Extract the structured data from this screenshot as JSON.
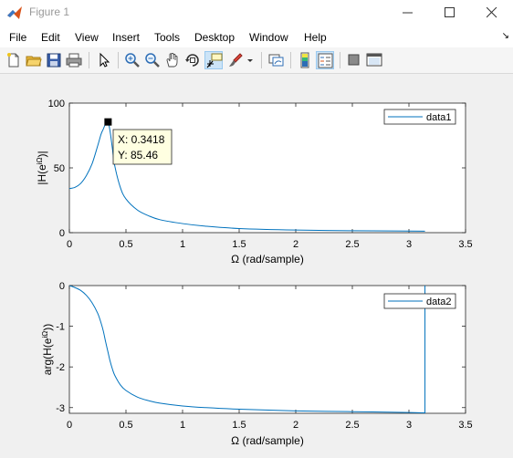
{
  "window": {
    "title": "Figure 1",
    "minimize_icon": "minimize-icon",
    "maximize_icon": "maximize-icon",
    "close_icon": "close-icon"
  },
  "menu": {
    "items": [
      "File",
      "Edit",
      "View",
      "Insert",
      "Tools",
      "Desktop",
      "Window",
      "Help"
    ]
  },
  "toolbar": {
    "icons": [
      "new-figure-icon",
      "open-file-icon",
      "save-icon",
      "print-icon",
      "select-arrow-icon",
      "zoom-in-icon",
      "zoom-out-icon",
      "pan-hand-icon",
      "rotate-3d-icon",
      "data-cursor-icon",
      "brush-icon",
      "brush-dropdown-icon",
      "link-plot-icon",
      "colorbar-icon",
      "legend-icon",
      "hide-plot-tools-icon",
      "show-plot-tools-icon"
    ]
  },
  "colors": {
    "series": "#0072bd",
    "axes_bg": "#ffffff",
    "figure_bg": "#f0f0f0"
  },
  "chart_data": [
    {
      "type": "line",
      "xlabel": "Ω (rad/sample)",
      "ylabel_main": "|H(e",
      "ylabel_sup": "iΩ",
      "ylabel_tail": ")|",
      "xlim": [
        0,
        3.5
      ],
      "ylim": [
        0,
        100
      ],
      "xticks": [
        "0",
        "0.5",
        "1",
        "1.5",
        "2",
        "2.5",
        "3",
        "3.5"
      ],
      "yticks": [
        "0",
        "50",
        "100"
      ],
      "legend": {
        "position": "top-right",
        "entries": [
          "data1"
        ]
      },
      "series": [
        {
          "name": "data1",
          "x": [
            0,
            0.05,
            0.1,
            0.15,
            0.2,
            0.25,
            0.28,
            0.3,
            0.32,
            0.3418,
            0.36,
            0.38,
            0.4,
            0.45,
            0.5,
            0.6,
            0.7,
            0.8,
            1.0,
            1.2,
            1.5,
            2.0,
            2.5,
            3.0,
            3.1416
          ],
          "y": [
            34,
            35,
            38,
            44,
            53,
            67,
            76,
            80,
            84,
            85.46,
            78,
            65,
            52,
            35,
            26,
            17.5,
            13,
            10,
            7,
            5,
            3.2,
            2,
            1.5,
            1.2,
            1.15
          ]
        }
      ],
      "datatip": {
        "x": 0.3418,
        "y": 85.46,
        "x_label": "X: 0.3418",
        "y_label": "Y: 85.46"
      }
    },
    {
      "type": "line",
      "xlabel": "Ω (rad/sample)",
      "ylabel_main": "arg(H(e",
      "ylabel_sup": "iΩ",
      "ylabel_tail": "))",
      "xlim": [
        0,
        3.5
      ],
      "ylim": [
        -3.14,
        0
      ],
      "xticks": [
        "0",
        "0.5",
        "1",
        "1.5",
        "2",
        "2.5",
        "3",
        "3.5"
      ],
      "yticks": [
        "0",
        "-1",
        "-2",
        "-3"
      ],
      "legend": {
        "position": "top-right",
        "entries": [
          "data2"
        ]
      },
      "series": [
        {
          "name": "data2",
          "x": [
            0,
            0.05,
            0.1,
            0.15,
            0.2,
            0.25,
            0.28,
            0.3,
            0.32,
            0.34,
            0.36,
            0.38,
            0.4,
            0.45,
            0.5,
            0.6,
            0.7,
            0.8,
            1.0,
            1.2,
            1.5,
            2.0,
            2.5,
            3.0,
            3.14,
            3.1416,
            3.1416
          ],
          "y": [
            0,
            -0.05,
            -0.12,
            -0.24,
            -0.42,
            -0.68,
            -0.92,
            -1.12,
            -1.38,
            -1.62,
            -1.86,
            -2.05,
            -2.2,
            -2.44,
            -2.58,
            -2.74,
            -2.83,
            -2.89,
            -2.96,
            -3.0,
            -3.04,
            -3.08,
            -3.1,
            -3.12,
            -3.13,
            -3.14,
            0
          ]
        }
      ]
    }
  ]
}
